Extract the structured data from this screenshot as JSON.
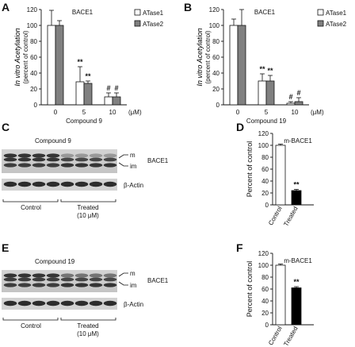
{
  "panels": {
    "A": {
      "letter": "A"
    },
    "B": {
      "letter": "B"
    },
    "C": {
      "letter": "C",
      "compound": "Compound 9",
      "band_m": "m",
      "band_im": "im",
      "protein": "BACE1",
      "loading": "β-Actin",
      "group_control": "Control",
      "group_treated": "Treated",
      "treated_conc": "(10 μM)"
    },
    "D": {
      "letter": "D"
    },
    "E": {
      "letter": "E",
      "compound": "Compound 19",
      "band_m": "m",
      "band_im": "im",
      "protein": "BACE1",
      "loading": "β-Actin",
      "group_control": "Control",
      "group_treated": "Treated",
      "treated_conc": "(10 μM)"
    },
    "F": {
      "letter": "F"
    }
  },
  "colors": {
    "atase1": "#ffffff",
    "atase2": "#808080",
    "control": "#ffffff",
    "treated": "#000000"
  },
  "chart_data": [
    {
      "panel": "A",
      "type": "bar",
      "title": "BACE1",
      "ylabel_line1": "In vitro Acetylation",
      "ylabel_line2": "(percent of control)",
      "xlabel": "Compound 9",
      "x_unit": "(μM)",
      "categories": [
        "0",
        "5",
        "10"
      ],
      "ylim": [
        0,
        120
      ],
      "yticks": [
        0,
        20,
        40,
        60,
        80,
        100,
        120
      ],
      "series": [
        {
          "name": "ATase1",
          "values": [
            100,
            29,
            10
          ],
          "errors": [
            19,
            19,
            5
          ],
          "marks": [
            "",
            "**",
            "#"
          ]
        },
        {
          "name": "ATase2",
          "values": [
            100,
            27,
            10
          ],
          "errors": [
            6,
            3,
            5
          ],
          "marks": [
            "",
            "**",
            "#"
          ]
        }
      ]
    },
    {
      "panel": "B",
      "type": "bar",
      "title": "BACE1",
      "ylabel_line1": "In vitro Acetylation",
      "ylabel_line2": "(percent of control)",
      "xlabel": "Compound 19",
      "x_unit": "(μM)",
      "categories": [
        "0",
        "5",
        "10"
      ],
      "ylim": [
        0,
        120
      ],
      "yticks": [
        0,
        20,
        40,
        60,
        80,
        100,
        120
      ],
      "series": [
        {
          "name": "ATase1",
          "values": [
            100,
            30,
            2
          ],
          "errors": [
            8,
            9,
            2
          ],
          "marks": [
            "",
            "**",
            "#"
          ]
        },
        {
          "name": "ATase2",
          "values": [
            100,
            30,
            4
          ],
          "errors": [
            20,
            7,
            5
          ],
          "marks": [
            "",
            "**",
            "#"
          ]
        }
      ]
    },
    {
      "panel": "D",
      "type": "bar",
      "title": "m-BACE1",
      "ylabel": "Percent of control",
      "categories": [
        "Control",
        "Treated"
      ],
      "ylim": [
        0,
        120
      ],
      "yticks": [
        0,
        20,
        40,
        60,
        80,
        100,
        120
      ],
      "values": [
        100,
        24
      ],
      "errors": [
        2,
        2
      ],
      "marks": [
        "",
        "**"
      ]
    },
    {
      "panel": "F",
      "type": "bar",
      "title": "m-BACE1",
      "ylabel": "Percent of control",
      "categories": [
        "Control",
        "Treated"
      ],
      "ylim": [
        0,
        120
      ],
      "yticks": [
        0,
        20,
        40,
        60,
        80,
        100,
        120
      ],
      "values": [
        100,
        62
      ],
      "errors": [
        2,
        2
      ],
      "marks": [
        "",
        "**"
      ]
    }
  ]
}
